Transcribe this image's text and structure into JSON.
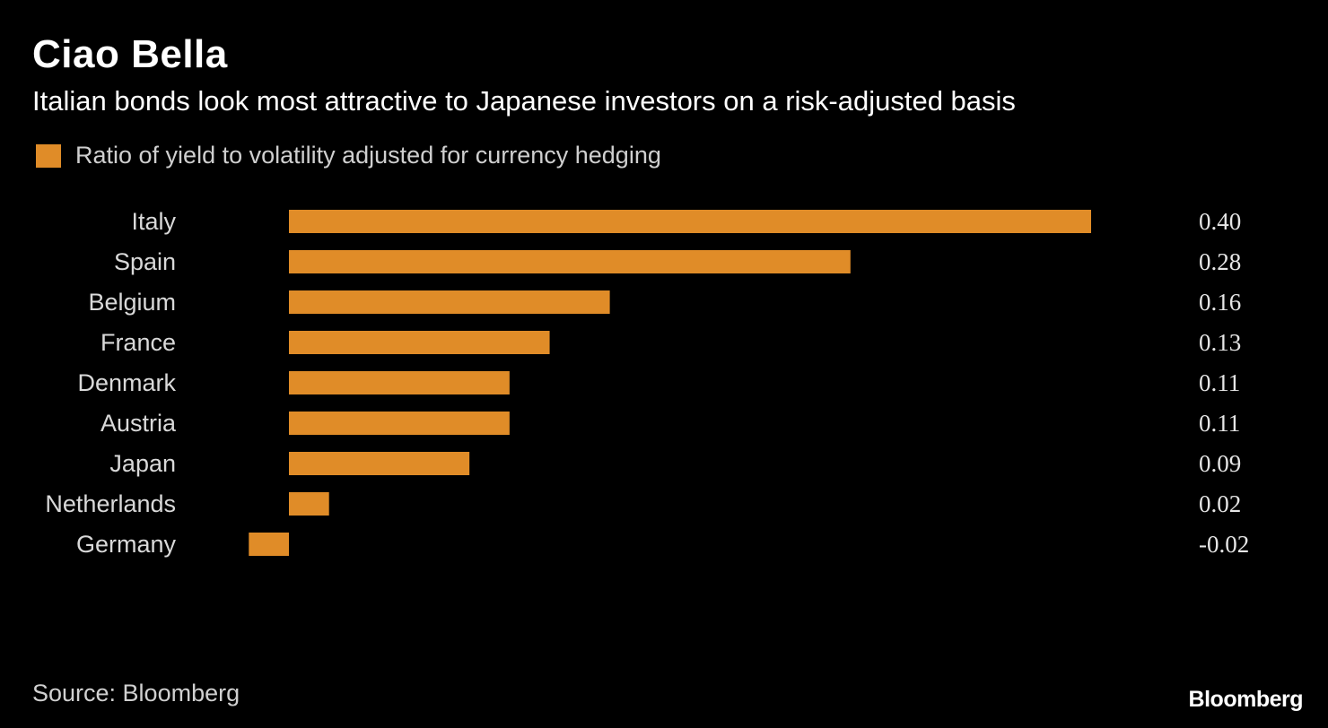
{
  "title": "Ciao Bella",
  "subtitle": "Italian bonds look most attractive to Japanese investors on a risk-adjusted basis",
  "legend": {
    "label": "Ratio of yield to volatility adjusted for currency hedging",
    "color": "#e08c28"
  },
  "source": "Source: Bloomberg",
  "brand": "Bloomberg",
  "chart_data": {
    "type": "bar",
    "orientation": "horizontal",
    "categories": [
      "Italy",
      "Spain",
      "Belgium",
      "France",
      "Denmark",
      "Austria",
      "Japan",
      "Netherlands",
      "Germany"
    ],
    "series": [
      {
        "name": "Ratio of yield to volatility adjusted for currency hedging",
        "values": [
          0.4,
          0.28,
          0.16,
          0.13,
          0.11,
          0.11,
          0.09,
          0.02,
          -0.02
        ]
      }
    ],
    "value_labels": [
      "0.40",
      "0.28",
      "0.16",
      "0.13",
      "0.11",
      "0.11",
      "0.09",
      "0.02",
      "-0.02"
    ],
    "xlim": [
      -0.02,
      0.4
    ],
    "bar_color": "#e08c28",
    "grid": false,
    "legend_position": "top-left"
  }
}
